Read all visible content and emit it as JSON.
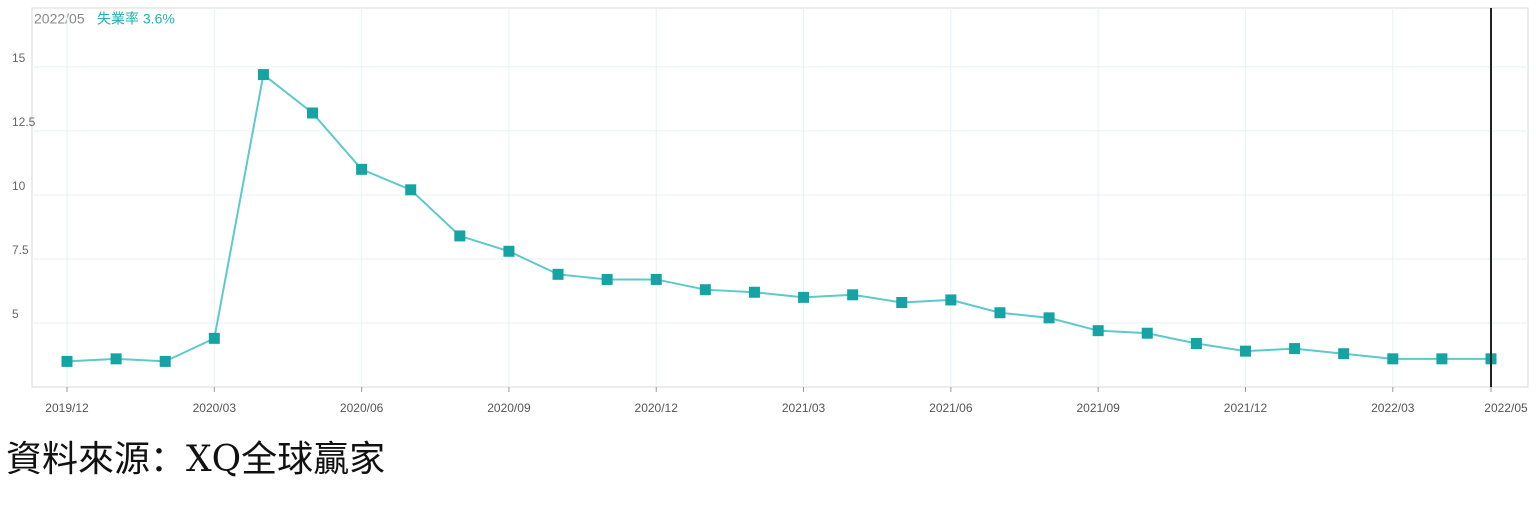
{
  "chart_data": {
    "type": "line",
    "annotation_date": "2022/05",
    "annotation_text": "失業率 3.6%",
    "categories": [
      "2019/12",
      null,
      null,
      "2020/03",
      null,
      null,
      "2020/06",
      null,
      null,
      "2020/09",
      null,
      null,
      "2020/12",
      null,
      null,
      "2021/03",
      null,
      null,
      "2021/06",
      null,
      null,
      "2021/09",
      null,
      null,
      "2021/12",
      null,
      null,
      "2022/03",
      null,
      "2022/05"
    ],
    "series": [
      {
        "name": "失業率",
        "color": "#16a3a3",
        "values": [
          3.5,
          3.6,
          3.5,
          4.4,
          14.7,
          13.2,
          11.0,
          10.2,
          8.4,
          7.8,
          6.9,
          6.7,
          6.7,
          6.3,
          6.2,
          6.0,
          6.1,
          5.8,
          5.9,
          5.4,
          5.2,
          4.7,
          4.6,
          4.2,
          3.9,
          4.0,
          3.8,
          3.6,
          3.6,
          3.6
        ]
      }
    ],
    "ylim": [
      2.5,
      17.3
    ],
    "yticks": [
      5,
      7.5,
      10,
      12.5,
      15
    ],
    "grid": true,
    "source": "資料來源：XQ全球贏家"
  }
}
